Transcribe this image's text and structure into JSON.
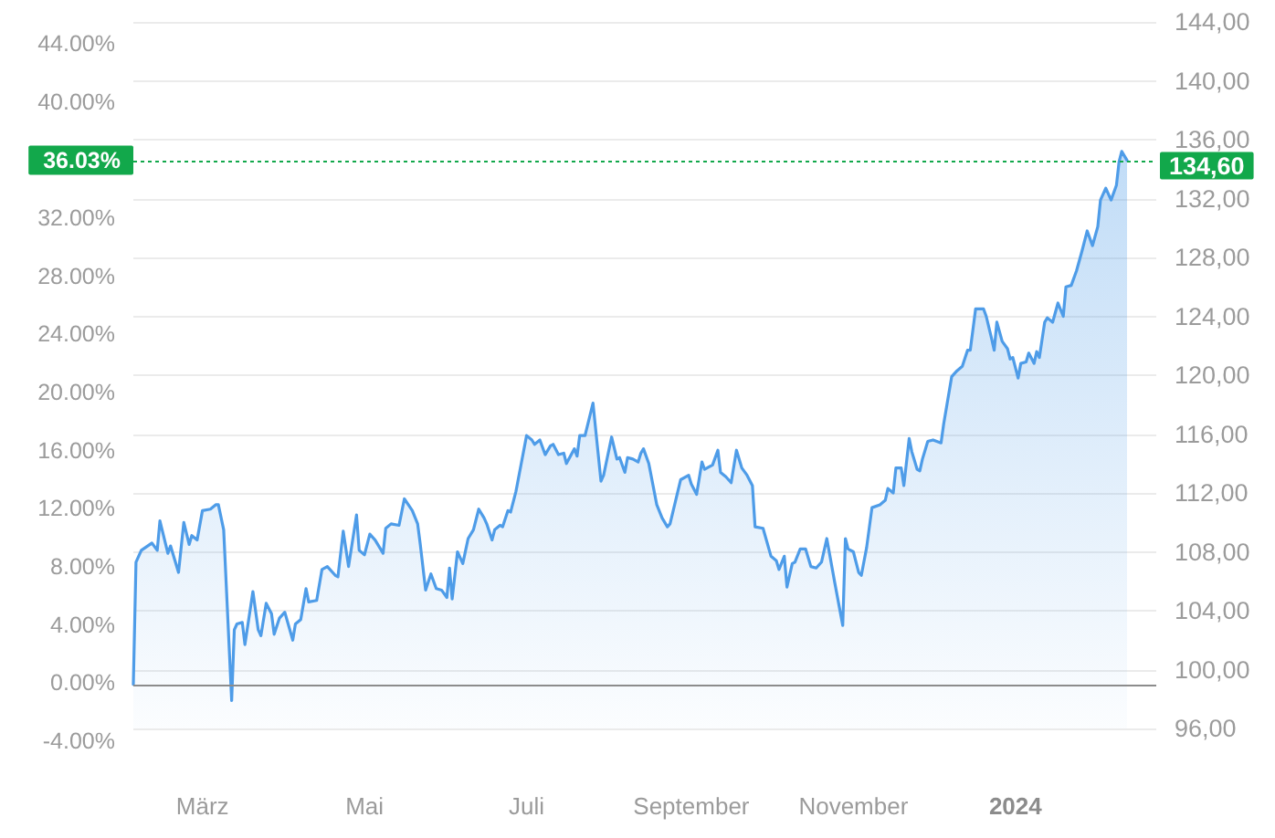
{
  "chart_data": {
    "type": "area",
    "x": [
      "2023-02-03",
      "2023-02-04",
      "2023-02-06",
      "2023-02-10",
      "2023-02-12",
      "2023-02-13",
      "2023-02-16",
      "2023-02-17",
      "2023-02-20",
      "2023-02-22",
      "2023-02-24",
      "2023-02-25",
      "2023-02-27",
      "2023-03-01",
      "2023-03-04",
      "2023-03-06",
      "2023-03-07",
      "2023-03-09",
      "2023-03-12",
      "2023-03-13",
      "2023-03-14",
      "2023-03-16",
      "2023-03-17",
      "2023-03-20",
      "2023-03-22",
      "2023-03-23",
      "2023-03-25",
      "2023-03-27",
      "2023-03-28",
      "2023-03-30",
      "2023-04-01",
      "2023-04-04",
      "2023-04-05",
      "2023-04-07",
      "2023-04-09",
      "2023-04-10",
      "2023-04-13",
      "2023-04-15",
      "2023-04-17",
      "2023-04-20",
      "2023-04-21",
      "2023-04-23",
      "2023-04-25",
      "2023-04-28",
      "2023-04-29",
      "2023-05-01",
      "2023-05-03",
      "2023-05-05",
      "2023-05-08",
      "2023-05-09",
      "2023-05-11",
      "2023-05-14",
      "2023-05-16",
      "2023-05-19",
      "2023-05-21",
      "2023-05-22",
      "2023-05-24",
      "2023-05-26",
      "2023-05-28",
      "2023-05-30",
      "2023-06-01",
      "2023-06-02",
      "2023-06-03",
      "2023-06-05",
      "2023-06-07",
      "2023-06-09",
      "2023-06-11",
      "2023-06-13",
      "2023-06-15",
      "2023-06-16",
      "2023-06-18",
      "2023-06-19",
      "2023-06-21",
      "2023-06-22",
      "2023-06-24",
      "2023-06-25",
      "2023-06-27",
      "2023-07-01",
      "2023-07-03",
      "2023-07-04",
      "2023-07-06",
      "2023-07-08",
      "2023-07-10",
      "2023-07-11",
      "2023-07-13",
      "2023-07-15",
      "2023-07-16",
      "2023-07-19",
      "2023-07-20",
      "2023-07-21",
      "2023-07-23",
      "2023-07-26",
      "2023-07-29",
      "2023-07-30",
      "2023-08-02",
      "2023-08-04",
      "2023-08-05",
      "2023-08-07",
      "2023-08-08",
      "2023-08-10",
      "2023-08-12",
      "2023-08-13",
      "2023-08-14",
      "2023-08-16",
      "2023-08-19",
      "2023-08-21",
      "2023-08-23",
      "2023-08-24",
      "2023-08-26",
      "2023-08-28",
      "2023-08-31",
      "2023-09-01",
      "2023-09-03",
      "2023-09-05",
      "2023-09-06",
      "2023-09-09",
      "2023-09-11",
      "2023-09-12",
      "2023-09-14",
      "2023-09-16",
      "2023-09-18",
      "2023-09-20",
      "2023-09-22",
      "2023-09-24",
      "2023-09-25",
      "2023-09-28",
      "2023-10-01",
      "2023-10-03",
      "2023-10-04",
      "2023-10-06",
      "2023-10-07",
      "2023-10-09",
      "2023-10-10",
      "2023-10-12",
      "2023-10-14",
      "2023-10-16",
      "2023-10-18",
      "2023-10-20",
      "2023-10-22",
      "2023-10-25",
      "2023-10-28",
      "2023-10-29",
      "2023-10-30",
      "2023-11-01",
      "2023-11-03",
      "2023-11-04",
      "2023-11-06",
      "2023-11-08",
      "2023-11-11",
      "2023-11-13",
      "2023-11-14",
      "2023-11-16",
      "2023-11-17",
      "2023-11-19",
      "2023-11-20",
      "2023-11-22",
      "2023-11-23",
      "2023-11-25",
      "2023-11-26",
      "2023-11-27",
      "2023-11-29",
      "2023-12-01",
      "2023-12-04",
      "2023-12-05",
      "2023-12-08",
      "2023-12-10",
      "2023-12-12",
      "2023-12-14",
      "2023-12-15",
      "2023-12-17",
      "2023-12-20",
      "2023-12-21",
      "2023-12-23",
      "2023-12-24",
      "2023-12-25",
      "2023-12-27",
      "2023-12-29",
      "2023-12-30",
      "2023-12-31",
      "2024-01-02",
      "2024-01-03",
      "2024-01-05",
      "2024-01-06",
      "2024-01-08",
      "2024-01-09",
      "2024-01-10",
      "2024-01-12",
      "2024-01-13",
      "2024-01-15",
      "2024-01-17",
      "2024-01-19",
      "2024-01-20",
      "2024-01-22",
      "2024-01-24",
      "2024-01-26",
      "2024-01-28",
      "2024-01-30",
      "2024-02-01",
      "2024-02-02",
      "2024-02-04",
      "2024-02-06",
      "2024-02-08",
      "2024-02-09",
      "2024-02-10",
      "2024-02-12"
    ],
    "series": [
      {
        "color": "#4e9ce8",
        "values": [
          99.0,
          107.3,
          108.1,
          108.6,
          108.1,
          110.1,
          107.9,
          108.4,
          106.6,
          110.0,
          108.5,
          109.1,
          108.8,
          110.8,
          110.9,
          111.2,
          111.2,
          109.5,
          97.9,
          102.7,
          103.1,
          103.2,
          101.7,
          105.3,
          102.7,
          102.3,
          104.5,
          103.8,
          102.4,
          103.5,
          103.9,
          102.0,
          103.1,
          103.4,
          105.5,
          104.6,
          104.7,
          106.8,
          107.0,
          106.4,
          106.3,
          109.4,
          107.0,
          110.5,
          108.1,
          107.8,
          109.2,
          108.8,
          107.9,
          109.6,
          109.9,
          109.8,
          111.6,
          110.8,
          109.9,
          108.5,
          105.4,
          106.5,
          105.5,
          105.4,
          104.9,
          106.9,
          104.8,
          108.0,
          107.2,
          108.9,
          109.5,
          110.9,
          110.3,
          109.9,
          108.8,
          109.5,
          109.8,
          109.7,
          110.8,
          110.7,
          112.1,
          115.9,
          115.6,
          115.3,
          115.6,
          114.6,
          115.2,
          115.3,
          114.6,
          114.7,
          114.0,
          115.0,
          114.5,
          115.9,
          115.9,
          118.1,
          112.8,
          113.2,
          115.8,
          114.3,
          114.4,
          113.4,
          114.4,
          114.3,
          114.1,
          114.7,
          115.0,
          114.0,
          111.2,
          110.3,
          109.7,
          109.9,
          111.4,
          112.9,
          113.2,
          112.6,
          111.9,
          114.1,
          113.6,
          113.9,
          114.9,
          113.4,
          113.1,
          112.7,
          114.9,
          113.7,
          113.2,
          112.5,
          109.7,
          109.6,
          107.7,
          107.4,
          106.8,
          107.7,
          105.6,
          107.2,
          107.3,
          108.2,
          108.2,
          107.0,
          106.9,
          107.3,
          108.9,
          105.9,
          103.0,
          108.9,
          108.2,
          108.0,
          106.6,
          106.4,
          108.3,
          111.0,
          111.2,
          111.5,
          112.3,
          112.0,
          113.7,
          113.7,
          112.5,
          115.7,
          114.8,
          113.6,
          113.5,
          114.3,
          115.5,
          115.6,
          115.4,
          116.7,
          119.9,
          120.3,
          120.6,
          121.7,
          121.7,
          124.5,
          124.5,
          124.0,
          122.5,
          121.7,
          123.6,
          122.3,
          121.8,
          121.1,
          121.2,
          119.8,
          120.8,
          120.9,
          121.5,
          120.8,
          121.6,
          121.2,
          123.6,
          123.9,
          123.6,
          124.9,
          124.0,
          126.0,
          126.1,
          127.1,
          128.4,
          129.8,
          128.8,
          130.1,
          131.9,
          132.7,
          131.9,
          132.9,
          134.5,
          135.2,
          134.6
        ]
      }
    ],
    "xlim": [
      "2023-02-03",
      "2024-02-23"
    ],
    "xticks": [
      {
        "value": "2023-03-01",
        "label": "März"
      },
      {
        "value": "2023-05-01",
        "label": "Mai"
      },
      {
        "value": "2023-07-01",
        "label": "Juli"
      },
      {
        "value": "2023-09-01",
        "label": "September"
      },
      {
        "value": "2023-11-01",
        "label": "November"
      },
      {
        "value": "2024-01-01",
        "label": "2024"
      }
    ],
    "ylim": [
      96,
      144
    ],
    "yticks": [
      {
        "value": 96,
        "label": "96,00"
      },
      {
        "value": 100,
        "label": "100,00"
      },
      {
        "value": 104,
        "label": "104,00"
      },
      {
        "value": 108,
        "label": "108,00"
      },
      {
        "value": 112,
        "label": "112,00"
      },
      {
        "value": 116,
        "label": "116,00"
      },
      {
        "value": 120,
        "label": "120,00"
      },
      {
        "value": 124,
        "label": "124,00"
      },
      {
        "value": 128,
        "label": "128,00"
      },
      {
        "value": 132,
        "label": "132,00"
      },
      {
        "value": 136,
        "label": "136,00"
      },
      {
        "value": 140,
        "label": "140,00"
      },
      {
        "value": 144,
        "label": "144,00"
      }
    ],
    "y2lim": [
      -4,
      44
    ],
    "y2ticks": [
      {
        "value": -4,
        "label": "-4.00%"
      },
      {
        "value": 0,
        "label": "0.00%"
      },
      {
        "value": 4,
        "label": "4.00%"
      },
      {
        "value": 8,
        "label": "8.00%"
      },
      {
        "value": 12,
        "label": "12.00%"
      },
      {
        "value": 16,
        "label": "16.00%"
      },
      {
        "value": 20,
        "label": "20.00%"
      },
      {
        "value": 24,
        "label": "24.00%"
      },
      {
        "value": 28,
        "label": "28.00%"
      },
      {
        "value": 32,
        "label": "32.00%"
      },
      {
        "value": 40,
        "label": "40.00%"
      },
      {
        "value": 44,
        "label": "44.00%"
      }
    ],
    "ref_lines": [
      {
        "axis": "y",
        "value": 99.0,
        "color": "#8c8c8c",
        "line_style": "solid"
      },
      {
        "axis": "y",
        "value": 134.6,
        "label": "134,60",
        "color": "#12a84b",
        "line_style": "dotted"
      }
    ],
    "annotations": [
      "36.03%"
    ],
    "grid": "y",
    "marker": "none"
  }
}
